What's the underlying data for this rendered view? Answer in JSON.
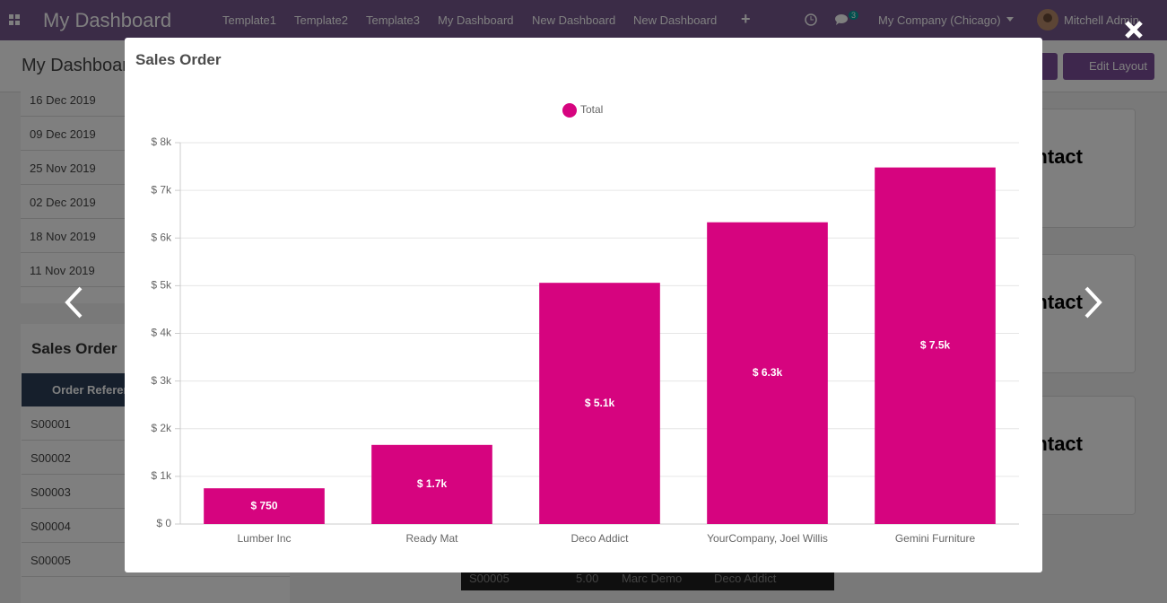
{
  "navbar": {
    "title": "My Dashboard",
    "menu": [
      "Template1",
      "Template2",
      "Template3",
      "My Dashboard",
      "New Dashboard",
      "New Dashboard"
    ],
    "chat_count": 3,
    "company": "My Company (Chicago)",
    "user": "Mitchell Admin"
  },
  "subheader": {
    "title": "My Dashboard",
    "button": "Edit Layout"
  },
  "date_list": [
    "16 Dec 2019",
    "09 Dec 2019",
    "25 Nov 2019",
    "02 Dec 2019",
    "18 Nov 2019",
    "11 Nov 2019"
  ],
  "sales_order_panel": {
    "title": "Sales Order",
    "header": "Order Reference",
    "rows": [
      "S00001",
      "S00002",
      "S00003",
      "S00004",
      "S00005"
    ]
  },
  "bottom_row": [
    "S00005",
    "5.00",
    "Marc Demo",
    "Deco Addict"
  ],
  "cards": [
    "Contact",
    "Contact",
    "Contact"
  ],
  "modal": {
    "title": "Sales Order"
  },
  "chart_data": {
    "type": "bar",
    "categories": [
      "Lumber Inc",
      "Ready Mat",
      "Deco Addict",
      "YourCompany, Joel Willis",
      "Gemini Furniture"
    ],
    "series": [
      {
        "name": "Total",
        "color": "#d6047f",
        "values": [
          750,
          1660,
          5060,
          6330,
          7480
        ],
        "value_labels": [
          "$ 750",
          "$ 1.7k",
          "$ 5.1k",
          "$ 6.3k",
          "$ 7.5k"
        ]
      }
    ],
    "ylim": [
      0,
      8000
    ],
    "yticks": [
      {
        "value": 0,
        "label": "$ 0"
      },
      {
        "value": 1000,
        "label": "$ 1k"
      },
      {
        "value": 2000,
        "label": "$ 2k"
      },
      {
        "value": 3000,
        "label": "$ 3k"
      },
      {
        "value": 4000,
        "label": "$ 4k"
      },
      {
        "value": 5000,
        "label": "$ 5k"
      },
      {
        "value": 6000,
        "label": "$ 6k"
      },
      {
        "value": 7000,
        "label": "$ 7k"
      },
      {
        "value": 8000,
        "label": "$ 8k"
      }
    ],
    "grid": true,
    "legend": "top"
  }
}
